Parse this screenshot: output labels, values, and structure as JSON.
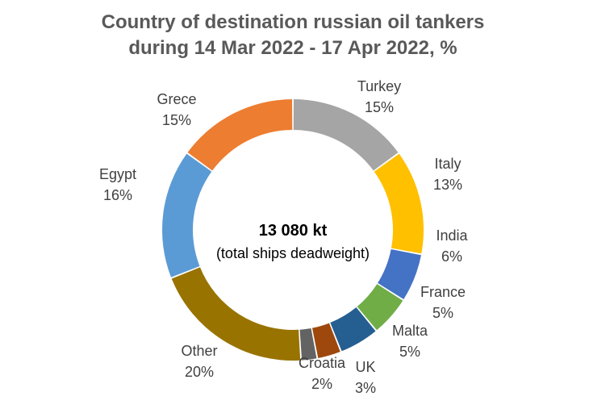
{
  "chart_data": {
    "type": "pie",
    "title_lines": [
      "Country of destination russian oil tankers",
      "during 14 Mar 2022 - 17 Apr 2022, %"
    ],
    "center_text": "13 080 kt",
    "center_subtext": "(total ships deadweight)",
    "slices": [
      {
        "label": "Turkey",
        "value": 15,
        "value_label": "15%",
        "color": "#a5a5a5"
      },
      {
        "label": "Italy",
        "value": 13,
        "value_label": "13%",
        "color": "#ffc000"
      },
      {
        "label": "India",
        "value": 6,
        "value_label": "6%",
        "color": "#4472c4"
      },
      {
        "label": "France",
        "value": 5,
        "value_label": "5%",
        "color": "#70ad47"
      },
      {
        "label": "Malta",
        "value": 5,
        "value_label": "5%",
        "color": "#255e91"
      },
      {
        "label": "UK",
        "value": 3,
        "value_label": "3%",
        "color": "#9e480e"
      },
      {
        "label": "Croatia",
        "value": 2,
        "value_label": "2%",
        "color": "#636363"
      },
      {
        "label": "Other",
        "value": 20,
        "value_label": "20%",
        "color": "#997300"
      },
      {
        "label": "Egypt",
        "value": 16,
        "value_label": "16%",
        "color": "#5b9bd5"
      },
      {
        "label": "Grece",
        "value": 15,
        "value_label": "15%",
        "color": "#ed7d31"
      }
    ],
    "legend": "none"
  }
}
